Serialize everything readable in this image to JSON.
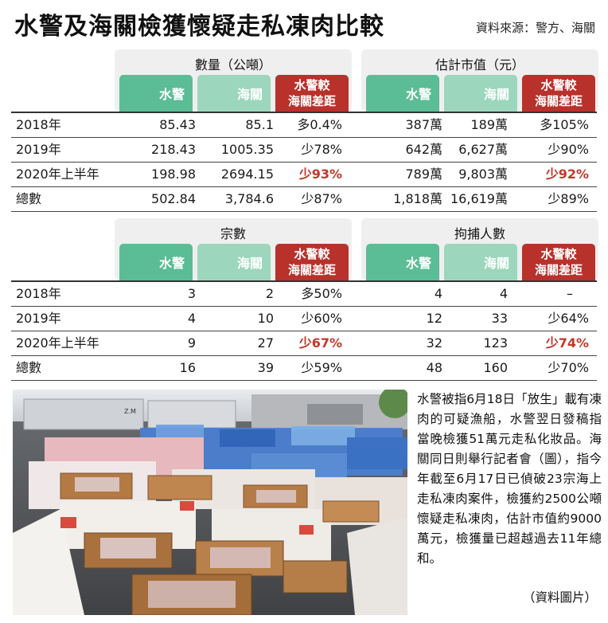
{
  "title": "水警及海關檢獲懷疑走私凍肉比較",
  "source": "資料來源：警方、海關",
  "col_labels": {
    "marine": "水警",
    "customs": "海關",
    "gap": "水警較\n海關差距"
  },
  "table1": {
    "left_title": "數量（公噸）",
    "right_title": "估計市值（元）",
    "rows": [
      {
        "label": "2018年",
        "c1": "85.43",
        "c2": "85.1",
        "c3": "多0.4%",
        "c4": "387萬",
        "c5": "189萬",
        "c6": "多105%"
      },
      {
        "label": "2019年",
        "c1": "218.43",
        "c2": "1005.35",
        "c3": "少78%",
        "c4": "642萬",
        "c5": "6,627萬",
        "c6": "少90%"
      },
      {
        "label": "2020年上半年",
        "c1": "198.98",
        "c2": "2694.15",
        "c3": "少93%",
        "c4": "789萬",
        "c5": "9,803萬",
        "c6": "少92%"
      },
      {
        "label": "總數",
        "c1": "502.84",
        "c2": "3,784.6",
        "c3": "少87%",
        "c4": "1,818萬",
        "c5": "16,619萬",
        "c6": "少89%"
      }
    ]
  },
  "table2": {
    "left_title": "宗數",
    "right_title": "拘捕人數",
    "rows": [
      {
        "label": "2018年",
        "c1": "3",
        "c2": "2",
        "c3": "多50%",
        "c4": "4",
        "c5": "4",
        "c6": "–"
      },
      {
        "label": "2019年",
        "c1": "4",
        "c2": "10",
        "c3": "少60%",
        "c4": "12",
        "c5": "33",
        "c6": "少64%"
      },
      {
        "label": "2020年上半年",
        "c1": "9",
        "c2": "27",
        "c3": "少67%",
        "c4": "32",
        "c5": "123",
        "c6": "少74%"
      },
      {
        "label": "總數",
        "c1": "16",
        "c2": "39",
        "c3": "少59%",
        "c4": "48",
        "c5": "160",
        "c6": "少70%"
      }
    ]
  },
  "caption": "水警被指6月18日「放生」載有凍肉的可疑漁船，水警翌日發稿指當晚檢獲51萬元走私化妝品。海關同日則舉行記者會（圖），指今年截至6月17日已偵破23宗海上走私凍肉案件，檢獲約2500公噸懷疑走私凍肉，估計市值約9000萬元，檢獲量已超越過去11年總和。",
  "credit": "（資料圖片）",
  "photo_signs": {
    "door": "Z.M"
  },
  "colors": {
    "marine_header": "#5bbd95",
    "customs_header": "#9cd6bc",
    "gap_header": "#b9312b",
    "highlight": "#c0392b"
  }
}
